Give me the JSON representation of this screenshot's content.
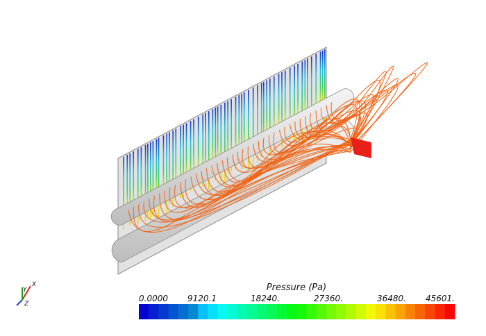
{
  "colorbar": {
    "title": "Pressure (Pa)",
    "labels": [
      "0.0000",
      "9120.1",
      "18240.",
      "27360.",
      "36480.",
      "45601."
    ]
  },
  "triad": {
    "x": "X",
    "y": "Y",
    "z": "Z"
  }
}
